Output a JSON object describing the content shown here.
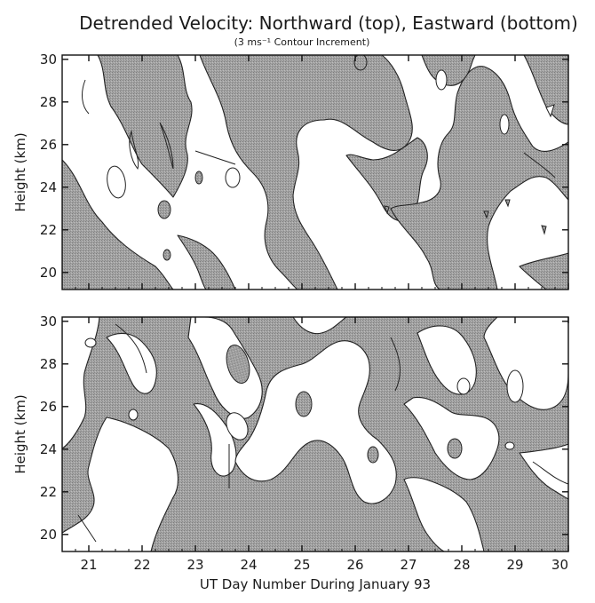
{
  "title": "Detrended Velocity: Northward (top), Eastward (bottom)",
  "subtitle": "(3 ms⁻¹ Contour Increment)",
  "chart_data": [
    {
      "type": "heatmap",
      "panel": "top",
      "component": "Northward",
      "xlabel": "",
      "ylabel": "Height (km)",
      "xlim": [
        20.5,
        30.0
      ],
      "ylim": [
        19.2,
        30.2
      ],
      "x_ticks": [
        21,
        22,
        23,
        24,
        25,
        26,
        27,
        28,
        29,
        30
      ],
      "y_ticks": [
        20,
        22,
        24,
        26,
        28,
        30
      ],
      "contour_increment": 3,
      "contour_units": "ms-1",
      "shading": "grey fill on alternate contour bands",
      "shade_color": "#9a9a9a",
      "line_color": "#222222"
    },
    {
      "type": "heatmap",
      "panel": "bottom",
      "component": "Eastward",
      "xlabel": "UT Day Number During January 93",
      "ylabel": "Height (km)",
      "xlim": [
        20.5,
        30.0
      ],
      "ylim": [
        19.2,
        30.2
      ],
      "x_ticks": [
        21,
        22,
        23,
        24,
        25,
        26,
        27,
        28,
        29,
        30
      ],
      "x_tick_labels": [
        "21",
        "22",
        "23",
        "24",
        "25",
        "26",
        "27",
        "28",
        "29",
        "30"
      ],
      "y_ticks": [
        20,
        22,
        24,
        26,
        28,
        30
      ],
      "contour_increment": 3,
      "contour_units": "ms-1",
      "shading": "grey fill on alternate contour bands",
      "shade_color": "#9a9a9a",
      "line_color": "#222222"
    }
  ]
}
